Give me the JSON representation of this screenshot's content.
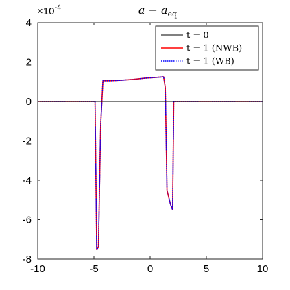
{
  "chart_data": {
    "type": "line",
    "title": "a − a",
    "title_subscript": "eq",
    "y_exponent_prefix": "×10",
    "y_exponent": "-4",
    "xlim": [
      -10,
      10
    ],
    "ylim": [
      -8,
      4
    ],
    "x_ticks": [
      -10,
      -5,
      0,
      5,
      10
    ],
    "y_ticks": [
      4,
      2,
      0,
      -2,
      -4,
      -6,
      -8
    ],
    "x_tick_labels": [
      "-10",
      "-5",
      "0",
      "5",
      "10"
    ],
    "y_tick_labels": [
      "4",
      "2",
      "0",
      "-2",
      "-4",
      "-6",
      "-8"
    ],
    "grid": false,
    "legend_position": "top-right",
    "series": [
      {
        "name": "t = 0",
        "color": "#000000",
        "style": "solid",
        "x": [
          -10,
          10
        ],
        "y": [
          0,
          0
        ]
      },
      {
        "name": "t = 1 (NWB)",
        "color": "#ff0000",
        "style": "solid",
        "x": [
          -10,
          -4.9,
          -4.75,
          -4.6,
          -4.4,
          -4.2,
          -3.5,
          -2.5,
          -1.5,
          -0.5,
          0.5,
          1.2,
          1.35,
          1.5,
          1.8,
          2.0,
          2.1,
          10
        ],
        "y": [
          0,
          0,
          -7.5,
          -7.4,
          -1.2,
          1.05,
          1.05,
          1.08,
          1.12,
          1.18,
          1.22,
          1.25,
          0.7,
          -4.5,
          -5.2,
          -5.5,
          0,
          0
        ]
      },
      {
        "name": "t = 1 (WB)",
        "color": "#0000ff",
        "style": "dotted",
        "x": [
          -10,
          -4.9,
          -4.75,
          -4.6,
          -4.4,
          -4.2,
          -3.5,
          -2.5,
          -1.5,
          -0.5,
          0.5,
          1.2,
          1.35,
          1.5,
          1.8,
          2.0,
          2.1,
          10
        ],
        "y": [
          0,
          0,
          -7.5,
          -7.4,
          -1.2,
          1.05,
          1.05,
          1.08,
          1.12,
          1.18,
          1.22,
          1.25,
          0.7,
          -4.5,
          -5.2,
          -5.5,
          0,
          0
        ]
      }
    ]
  }
}
